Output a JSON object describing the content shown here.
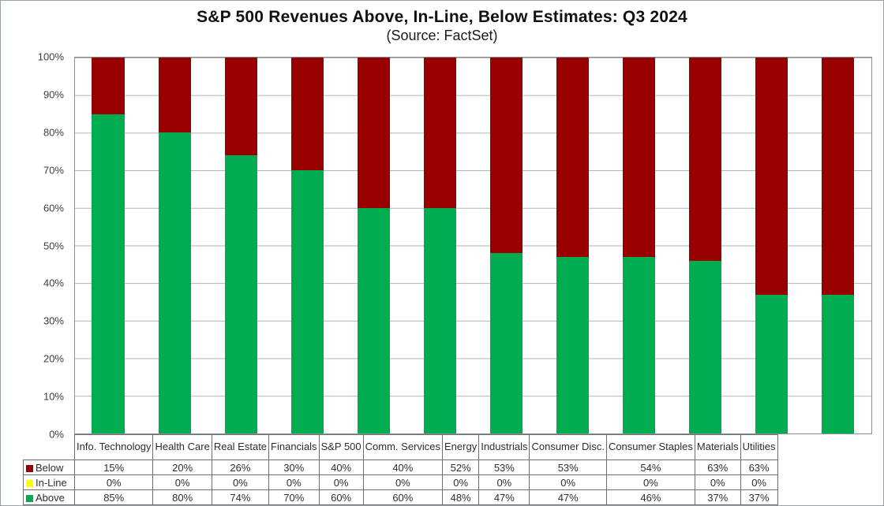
{
  "header": {
    "title": "S&P 500 Revenues Above, In-Line, Below Estimates: Q3 2024",
    "subtitle": "(Source: FactSet)"
  },
  "chart_data": {
    "type": "bar",
    "stacked": true,
    "title": "S&P 500 Revenues Above, In-Line, Below Estimates: Q3 2024",
    "subtitle": "(Source: FactSet)",
    "categories": [
      "Info. Technology",
      "Health Care",
      "Real Estate",
      "Financials",
      "S&P 500",
      "Comm. Services",
      "Energy",
      "Industrials",
      "Consumer Disc.",
      "Consumer Staples",
      "Materials",
      "Utilities"
    ],
    "series": [
      {
        "name": "Below",
        "color": "#980000",
        "values": [
          15,
          20,
          26,
          30,
          40,
          40,
          52,
          53,
          53,
          54,
          63,
          63
        ]
      },
      {
        "name": "In-Line",
        "color": "#ffff00",
        "values": [
          0,
          0,
          0,
          0,
          0,
          0,
          0,
          0,
          0,
          0,
          0,
          0
        ]
      },
      {
        "name": "Above",
        "color": "#00ac50",
        "values": [
          85,
          80,
          74,
          70,
          60,
          60,
          48,
          47,
          47,
          46,
          37,
          37
        ]
      }
    ],
    "stack_order_bottom_to_top": [
      "Above",
      "In-Line",
      "Below"
    ],
    "value_suffix": "%",
    "y_ticks": [
      "100%",
      "90%",
      "80%",
      "70%",
      "60%",
      "50%",
      "40%",
      "30%",
      "20%",
      "10%",
      "0%"
    ],
    "ylim": [
      0,
      100
    ],
    "grid": "horizontal",
    "legend_position": "table-left",
    "data_table_shown": true
  }
}
